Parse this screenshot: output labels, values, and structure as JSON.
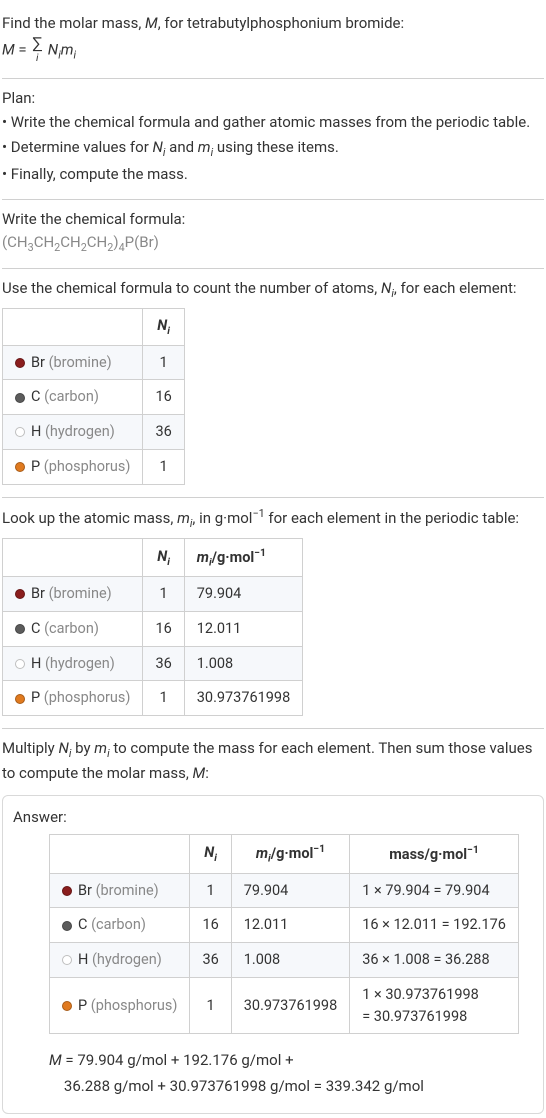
{
  "intro": {
    "line1_pre": "Find the molar mass, ",
    "line1_var": "M",
    "line1_post": ", for tetrabutylphosphonium bromide:",
    "eq_lhs": "M",
    "eq_eq": " = ",
    "eq_rhs_N": "N",
    "eq_rhs_m": "m",
    "eq_sub": "i"
  },
  "plan": {
    "title": "Plan:",
    "b1": "• Write the chemical formula and gather atomic masses from the periodic table.",
    "b2_pre": "• Determine values for ",
    "b2_mid": " and ",
    "b2_post": " using these items.",
    "b3": "• Finally, compute the mass."
  },
  "chem": {
    "title": "Write the chemical formula:",
    "p1": "(CH",
    "s1": "3",
    "p2": "CH",
    "s2": "2",
    "p3": "CH",
    "s3": "2",
    "p4": "CH",
    "s4": "2",
    "p5": ")",
    "s5": "4",
    "p6": "P(Br)"
  },
  "count": {
    "title_pre": "Use the chemical formula to count the number of atoms, ",
    "title_post": ", for each element:",
    "col_N": "N",
    "col_sub": "i",
    "rows": [
      {
        "color": "#8a1d1d",
        "sym": "Br",
        "name": "(bromine)",
        "n": "1"
      },
      {
        "color": "#5c5c5c",
        "sym": "C",
        "name": "(carbon)",
        "n": "16"
      },
      {
        "color": "#ffffff",
        "sym": "H",
        "name": "(hydrogen)",
        "n": "36"
      },
      {
        "color": "#e07a1f",
        "sym": "P",
        "name": "(phosphorus)",
        "n": "1"
      }
    ]
  },
  "masses": {
    "title_pre": "Look up the atomic mass, ",
    "title_mid": ", in g·mol",
    "title_exp": "−1",
    "title_post": " for each element in the periodic table:",
    "col_m": "m",
    "col_sub": "i",
    "unit_pre": "/g·mol",
    "unit_exp": "−1",
    "rows": [
      {
        "m": "79.904"
      },
      {
        "m": "12.011"
      },
      {
        "m": "1.008"
      },
      {
        "m": "30.973761998"
      }
    ]
  },
  "mult": {
    "text_pre": "Multiply ",
    "text_mid": " by ",
    "text_post": " to compute the mass for each element. Then sum those values to compute the molar mass, ",
    "text_var": "M",
    "text_end": ":"
  },
  "answer": {
    "label": "Answer:",
    "mass_hdr": "mass/g·mol",
    "mass_exp": "−1",
    "rows": [
      {
        "calc": "1 × 79.904 = 79.904"
      },
      {
        "calc": "16 × 12.011 = 192.176"
      },
      {
        "calc": "36 × 1.008 = 36.288"
      },
      {
        "calc_l1": "1 × 30.973761998",
        "calc_l2": "= 30.973761998"
      }
    ],
    "final_l1_pre": "M",
    "final_l1": " = 79.904 g/mol + 192.176 g/mol + ",
    "final_l2": "36.288 g/mol + 30.973761998 g/mol = 339.342 g/mol"
  }
}
